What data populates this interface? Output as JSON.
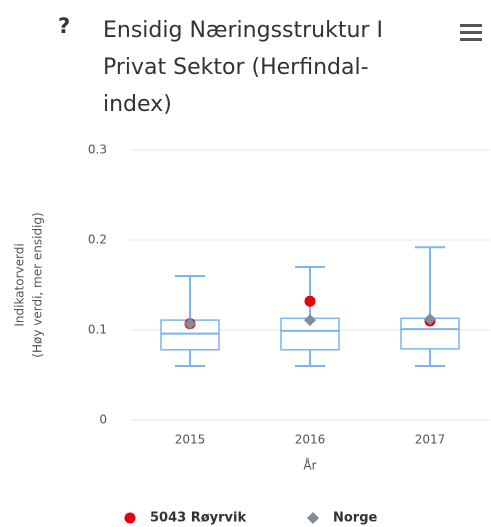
{
  "chart_data": {
    "type": "boxplot",
    "help": "?",
    "title": "Ensidig Næringsstruktur I Privat Sektor (Herfindal-index)",
    "ylabel": [
      "Indikatorverdi",
      "(Høy verdi, mer ensidig)"
    ],
    "xlabel": "År",
    "categories": [
      "2015",
      "2016",
      "2017"
    ],
    "boxes": {
      "color": "#7cb5ec",
      "low": [
        0.06,
        0.06,
        0.06
      ],
      "q1": [
        0.078,
        0.078,
        0.079
      ],
      "median": [
        0.096,
        0.099,
        0.101
      ],
      "q3": [
        0.111,
        0.113,
        0.113
      ],
      "high": [
        0.16,
        0.17,
        0.192
      ]
    },
    "series": [
      {
        "name": "5043 Røyrvik",
        "color": "#e4000f",
        "marker": "circle",
        "values": [
          0.107,
          0.132,
          0.11
        ]
      },
      {
        "name": "Norge",
        "color": "#7f8c9a",
        "marker": "diamond",
        "values": [
          0.107,
          0.111,
          0.112
        ]
      }
    ],
    "ylim": [
      0,
      0.3
    ],
    "yticks": [
      0,
      0.1,
      0.2,
      0.3
    ],
    "grid": true,
    "legend": "bottom"
  }
}
